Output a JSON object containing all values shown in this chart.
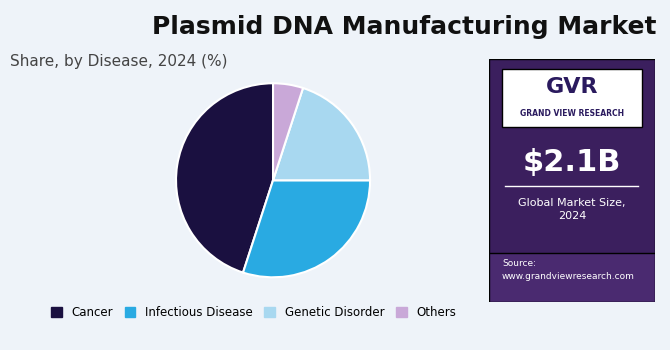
{
  "title": "Plasmid DNA Manufacturing Market",
  "subtitle": "Share, by Disease, 2024 (%)",
  "slices": [
    45,
    30,
    20,
    5
  ],
  "labels": [
    "Cancer",
    "Infectious Disease",
    "Genetic Disorder",
    "Others"
  ],
  "colors": [
    "#1a1040",
    "#29aae2",
    "#a8d8f0",
    "#c9a8d8"
  ],
  "start_angle": 90,
  "bg_color": "#eef3f9",
  "right_panel_color": "#3b1f5e",
  "right_panel_bottom_color": "#4a2a70",
  "market_size_text": "$2.1B",
  "market_size_label": "Global Market Size,\n2024",
  "source_text": "Source:\nwww.grandviewresearch.com",
  "title_fontsize": 18,
  "subtitle_fontsize": 11
}
